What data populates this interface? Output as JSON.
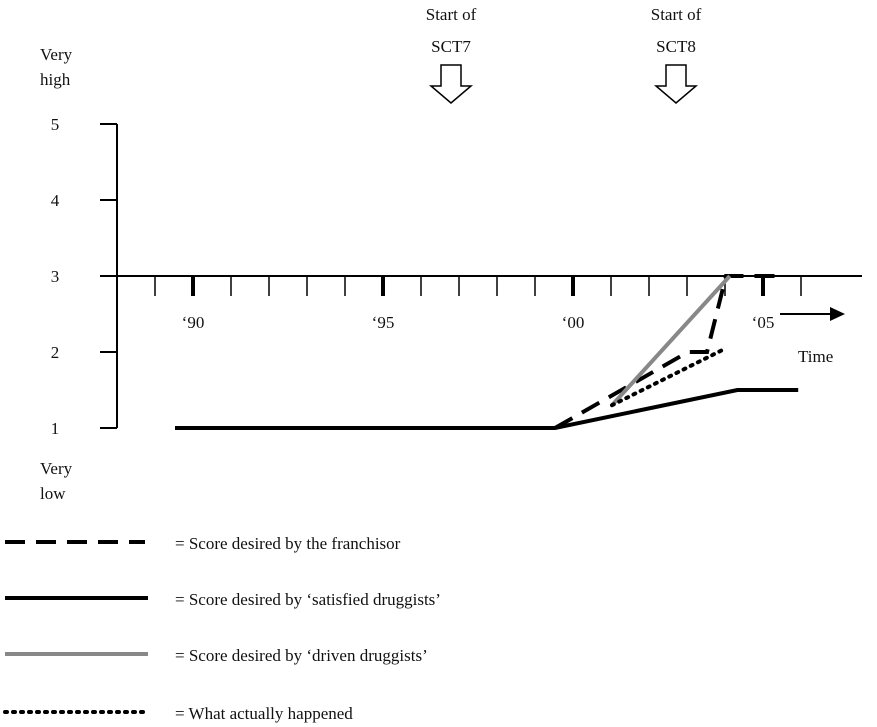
{
  "annotations": {
    "sct7_line1": "Start of",
    "sct7_line2": "SCT7",
    "sct8_line1": "Start of",
    "sct8_line2": "SCT8"
  },
  "y_axis": {
    "top_line1": "Very",
    "top_line2": "high",
    "bottom_line1": "Very",
    "bottom_line2": "low"
  },
  "colors": {
    "black": "#000000",
    "gray": "#888888"
  },
  "chart_data": {
    "type": "line",
    "xlabel": "Time",
    "ylabel": "",
    "ylim": [
      1,
      5
    ],
    "xlim": [
      1989,
      2007
    ],
    "y_ticks": [
      1,
      2,
      3,
      4,
      5
    ],
    "y_tick_labels": [
      "1",
      "2",
      "3",
      "4",
      "5"
    ],
    "x_ticks_major": [
      1990,
      1995,
      2000,
      2005
    ],
    "x_tick_labels": [
      "‘90",
      "‘95",
      "‘00",
      "‘05"
    ],
    "x_ticks_minor": [
      1989,
      1990,
      1991,
      1992,
      1993,
      1994,
      1995,
      1996,
      1997,
      1998,
      1999,
      2000,
      2001,
      2002,
      2003,
      2004,
      2005,
      2006,
      2007
    ],
    "markers": [
      {
        "x": 1997,
        "label": "Start of SCT7"
      },
      {
        "x": 2003,
        "label": "Start of SCT8"
      }
    ],
    "series": [
      {
        "name": "= Score desired by the franchisor",
        "style": "dashed",
        "color": "#000000",
        "points": [
          [
            2000,
            1.0
          ],
          [
            2003.5,
            2.0
          ],
          [
            2004,
            2.0
          ],
          [
            2004.5,
            3.0
          ],
          [
            2006,
            3.0
          ]
        ]
      },
      {
        "name": "= Score desired by ‘satisfied druggists’",
        "style": "solid",
        "color": "#000000",
        "points": [
          [
            1990,
            1.0
          ],
          [
            2000,
            1.0
          ],
          [
            2004.8,
            1.5
          ],
          [
            2006.4,
            1.5
          ]
        ]
      },
      {
        "name": "= Score desired by ‘driven druggists’",
        "style": "solid-gray",
        "color": "#888888",
        "points": [
          [
            2001.5,
            1.3
          ],
          [
            2004.6,
            3.0
          ]
        ]
      },
      {
        "name": "= What actually happened",
        "style": "dotted",
        "color": "#000000",
        "points": [
          [
            2001.5,
            1.3
          ],
          [
            2004.5,
            2.05
          ]
        ]
      }
    ]
  }
}
